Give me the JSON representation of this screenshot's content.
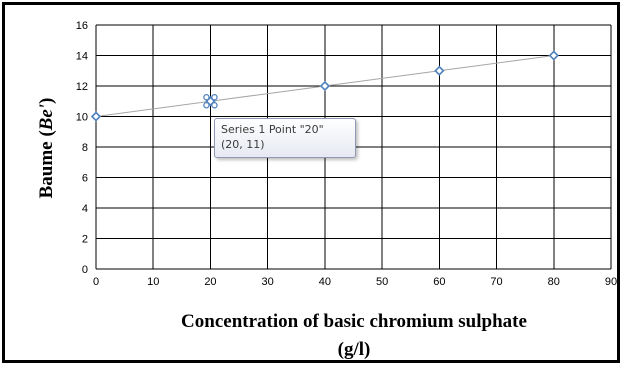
{
  "chart_data": {
    "type": "scatter",
    "x": [
      0,
      20,
      40,
      60,
      80
    ],
    "y": [
      10,
      11,
      12,
      13,
      14
    ],
    "series": [
      {
        "values": [
          10,
          11,
          12,
          13,
          14
        ]
      }
    ],
    "xlabel": "Concentration of basic chromium sulphate",
    "xlabel_line2": "(g/l)",
    "ylabel": "Baume (",
    "ylabel_unit": "Be'",
    "ylabel_close": ")",
    "xlim": [
      0,
      90
    ],
    "ylim": [
      0,
      16
    ],
    "x_ticks": [
      "0",
      "10",
      "20",
      "30",
      "40",
      "50",
      "60",
      "70",
      "80",
      "90"
    ],
    "y_ticks": [
      "0",
      "2",
      "4",
      "6",
      "8",
      "10",
      "12",
      "14",
      "16"
    ],
    "grid": true,
    "line_color": "#a6a6a6",
    "marker_color": "#4f81bd"
  },
  "tooltip": {
    "line1": "Series 1 Point \"20\"",
    "line2": "(20, 11)"
  }
}
